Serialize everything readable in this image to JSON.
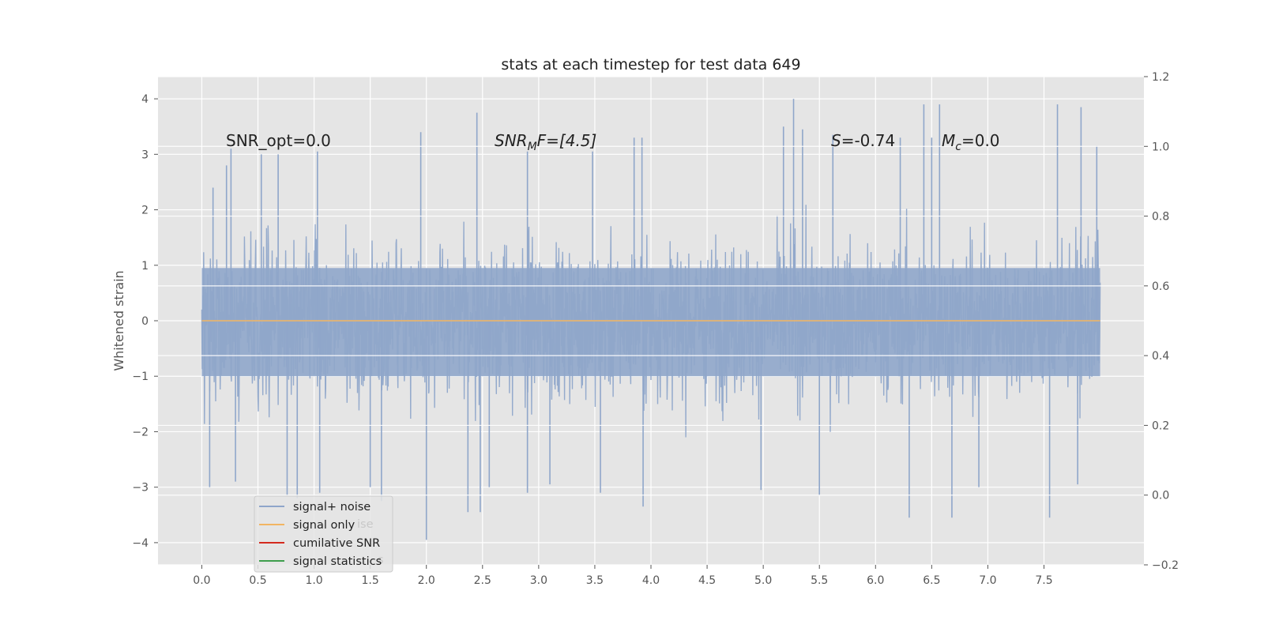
{
  "chart_data": {
    "type": "line",
    "title": "stats at each timestep for test data 649",
    "ylabel": "Whitened strain",
    "xlabel": "",
    "xlim": [
      -0.39,
      8.39
    ],
    "ylim": [
      -4.4,
      4.4
    ],
    "y2lim": [
      -0.2,
      1.2
    ],
    "x_ticks": [
      "0.0",
      "0.5",
      "1.0",
      "1.5",
      "2.0",
      "2.5",
      "3.0",
      "3.5",
      "4.0",
      "4.5",
      "5.0",
      "5.5",
      "6.0",
      "6.5",
      "7.0",
      "7.5"
    ],
    "y_ticks": [
      "−4",
      "−3",
      "−2",
      "−1",
      "0",
      "1",
      "2",
      "3",
      "4"
    ],
    "y2_ticks": [
      "−0.2",
      "0.0",
      "0.2",
      "0.4",
      "0.6",
      "0.8",
      "1.0",
      "1.2"
    ],
    "x_tick_values": [
      0.0,
      0.5,
      1.0,
      1.5,
      2.0,
      2.5,
      3.0,
      3.5,
      4.0,
      4.5,
      5.0,
      5.5,
      6.0,
      6.5,
      7.0,
      7.5
    ],
    "y_tick_values": [
      -4,
      -3,
      -2,
      -1,
      0,
      1,
      2,
      3,
      4
    ],
    "y2_tick_values": [
      -0.2,
      0.0,
      0.2,
      0.4,
      0.6,
      0.8,
      1.0,
      1.2
    ],
    "grid": true,
    "legend_position": "lower-left",
    "series": [
      {
        "name": "signal+ noise",
        "color": "#8fa6ca",
        "x_range": [
          0.0,
          8.0
        ],
        "envelope_peaks": [
          [
            0.1,
            2.4
          ],
          [
            0.22,
            2.8
          ],
          [
            0.26,
            3.1
          ],
          [
            0.53,
            3.0
          ],
          [
            0.68,
            3.0
          ],
          [
            1.03,
            3.05
          ],
          [
            1.95,
            3.4
          ],
          [
            2.45,
            3.75
          ],
          [
            2.9,
            3.05
          ],
          [
            3.48,
            3.05
          ],
          [
            3.85,
            3.3
          ],
          [
            3.92,
            3.3
          ],
          [
            5.18,
            3.5
          ],
          [
            5.27,
            4.0
          ],
          [
            5.35,
            3.45
          ],
          [
            5.62,
            3.35
          ],
          [
            6.22,
            3.3
          ],
          [
            6.43,
            3.9
          ],
          [
            6.5,
            3.3
          ],
          [
            6.57,
            3.9
          ],
          [
            7.62,
            3.9
          ],
          [
            7.83,
            3.85
          ],
          [
            7.97,
            3.15
          ]
        ],
        "envelope_troughs": [
          [
            0.07,
            -3.0
          ],
          [
            0.3,
            -2.9
          ],
          [
            0.76,
            -3.15
          ],
          [
            0.85,
            -3.2
          ],
          [
            1.05,
            -3.1
          ],
          [
            1.5,
            -3.0
          ],
          [
            1.6,
            -3.25
          ],
          [
            2.0,
            -3.95
          ],
          [
            2.37,
            -3.45
          ],
          [
            2.48,
            -3.45
          ],
          [
            2.56,
            -3.0
          ],
          [
            2.9,
            -3.1
          ],
          [
            3.1,
            -2.95
          ],
          [
            3.55,
            -3.1
          ],
          [
            3.93,
            -3.35
          ],
          [
            4.98,
            -3.05
          ],
          [
            5.5,
            -3.15
          ],
          [
            6.3,
            -3.55
          ],
          [
            6.68,
            -3.55
          ],
          [
            6.92,
            -3.0
          ],
          [
            7.55,
            -3.55
          ],
          [
            7.8,
            -2.95
          ]
        ]
      },
      {
        "name": "signal only",
        "color": "#f2b562",
        "x": [
          0.0,
          8.0
        ],
        "values": [
          0.0,
          0.0
        ]
      },
      {
        "name": "cumilative SNR",
        "color": "#d42a1e",
        "axis": "right",
        "x": [],
        "values": []
      },
      {
        "name": "signal statistics",
        "color": "#3f9e4d",
        "axis": "right",
        "x": [],
        "values": []
      }
    ],
    "annotations": {
      "snr_opt": "SNR_opt=0.0",
      "snr_mf_main": "SNR",
      "snr_mf_sub": "M",
      "snr_mf_rest": "F=[4.5]",
      "s_sym": "S",
      "s_val": "=-0.74",
      "mc_main": "M",
      "mc_sub": "c",
      "mc_val": "=0.0"
    },
    "legend_ghost_text": [
      "ise",
      "s"
    ]
  },
  "colors": {
    "plot_bg": "#e5e5e5",
    "grid": "#ffffff",
    "noise": "#8fa6ca",
    "signal": "#f2b562",
    "snr": "#d42a1e",
    "stats": "#3f9e4d"
  }
}
